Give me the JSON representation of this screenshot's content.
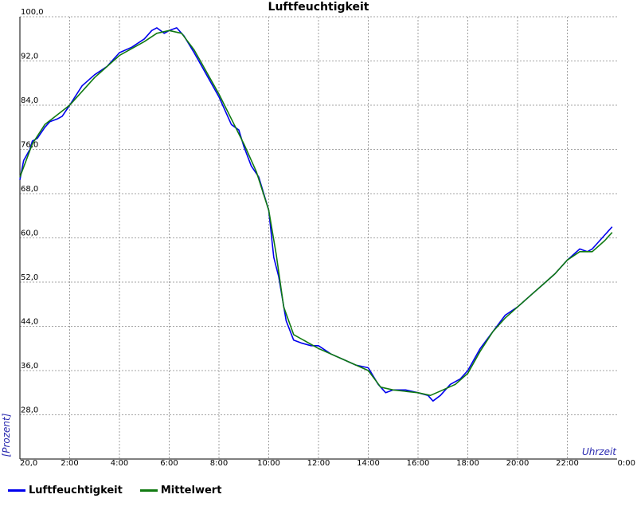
{
  "chart_data": {
    "type": "line",
    "title": "Luftfeuchtigkeit",
    "xlabel": "Uhrzeit",
    "ylabel": "[Prozent]",
    "xlim": [
      0,
      24
    ],
    "ylim": [
      20,
      100
    ],
    "x_ticks": [
      "20,0",
      "2:00",
      "4:00",
      "6:00",
      "8:00",
      "10:00",
      "12:00",
      "14:00",
      "16:00",
      "18:00",
      "20:00",
      "22:00",
      "0:00"
    ],
    "y_ticks": [
      "28,0",
      "36,0",
      "44,0",
      "52,0",
      "60,0",
      "68,0",
      "76,0",
      "84,0",
      "92,0",
      "100,0"
    ],
    "y_tick_values": [
      28,
      36,
      44,
      52,
      60,
      68,
      76,
      84,
      92,
      100
    ],
    "grid": true,
    "legend_position": "bottom-left",
    "series": [
      {
        "name": "Luftfeuchtigkeit",
        "color": "#0000ee",
        "x": [
          0.0,
          0.15,
          0.4,
          0.5,
          0.7,
          1.0,
          1.2,
          1.5,
          1.7,
          2.0,
          2.5,
          3.0,
          3.5,
          4.0,
          4.5,
          5.0,
          5.3,
          5.5,
          5.8,
          6.0,
          6.3,
          6.6,
          7.0,
          7.5,
          8.0,
          8.5,
          8.8,
          9.0,
          9.3,
          9.6,
          10.0,
          10.2,
          10.4,
          10.7,
          11.0,
          11.3,
          11.7,
          12.0,
          12.5,
          13.0,
          13.5,
          14.0,
          14.4,
          14.7,
          15.0,
          15.5,
          16.0,
          16.4,
          16.6,
          16.9,
          17.3,
          17.7,
          18.0,
          18.5,
          19.0,
          19.5,
          20.0,
          20.5,
          21.0,
          21.5,
          22.0,
          22.5,
          22.8,
          23.0,
          23.5,
          23.8
        ],
        "y": [
          70.5,
          74.0,
          76.0,
          77.5,
          78.0,
          80.0,
          81.0,
          81.5,
          82.0,
          84.0,
          87.5,
          89.5,
          91.0,
          93.5,
          94.5,
          96.0,
          97.5,
          98.0,
          97.0,
          97.5,
          98.0,
          96.5,
          93.5,
          89.5,
          85.5,
          80.5,
          79.5,
          76.5,
          73.0,
          71.0,
          65.0,
          56.5,
          53.0,
          45.0,
          41.5,
          41.0,
          40.5,
          40.5,
          39.0,
          38.0,
          37.0,
          36.5,
          33.5,
          32.0,
          32.5,
          32.5,
          32.0,
          31.5,
          30.5,
          31.5,
          33.5,
          34.5,
          36.0,
          40.0,
          43.0,
          46.0,
          47.5,
          49.5,
          51.5,
          53.5,
          56.0,
          58.0,
          57.5,
          58.0,
          60.5,
          62.0
        ]
      },
      {
        "name": "Mittelwert",
        "color": "#117a11",
        "x": [
          0.0,
          0.5,
          1.0,
          2.0,
          3.0,
          4.0,
          5.0,
          5.5,
          6.0,
          6.5,
          7.0,
          8.0,
          8.5,
          9.0,
          9.5,
          10.0,
          10.3,
          10.6,
          11.0,
          12.0,
          13.0,
          14.0,
          14.5,
          15.0,
          16.0,
          16.5,
          17.0,
          17.5,
          18.0,
          18.5,
          19.0,
          19.5,
          20.0,
          20.5,
          21.0,
          21.5,
          22.0,
          22.5,
          22.8,
          23.0,
          23.5,
          23.8
        ],
        "y": [
          71.0,
          77.0,
          80.5,
          84.0,
          89.0,
          93.0,
          95.5,
          97.0,
          97.5,
          97.0,
          94.0,
          86.0,
          81.5,
          77.0,
          72.0,
          65.0,
          57.0,
          47.5,
          42.5,
          40.0,
          38.0,
          36.0,
          33.0,
          32.5,
          32.0,
          31.5,
          32.5,
          33.5,
          35.5,
          39.5,
          43.0,
          45.5,
          47.5,
          49.5,
          51.5,
          53.5,
          56.0,
          57.5,
          57.5,
          57.5,
          59.5,
          61.0
        ]
      }
    ]
  }
}
